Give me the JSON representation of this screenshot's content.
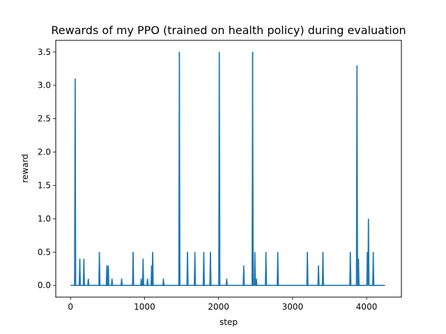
{
  "chart_data": {
    "type": "line",
    "title": "Rewards of my PPO (trained on health policy) during evaluation",
    "xlabel": "step",
    "ylabel": "reward",
    "xlim": [
      -200,
      4470
    ],
    "ylim": [
      -0.175,
      3.675
    ],
    "xticks": [
      0,
      1000,
      2000,
      3000,
      4000
    ],
    "yticks": [
      0.0,
      0.5,
      1.0,
      1.5,
      2.0,
      2.5,
      3.0,
      3.5
    ],
    "x_range": [
      0,
      4250
    ],
    "baseline": 0.0,
    "grid": false,
    "legend": "none",
    "series": [
      {
        "color": "#1f77b4",
        "spikes": [
          {
            "x": 62,
            "y": 3.1
          },
          {
            "x": 125,
            "y": 0.4
          },
          {
            "x": 180,
            "y": 0.4
          },
          {
            "x": 240,
            "y": 0.1
          },
          {
            "x": 390,
            "y": 0.5
          },
          {
            "x": 490,
            "y": 0.3
          },
          {
            "x": 510,
            "y": 0.3
          },
          {
            "x": 560,
            "y": 0.1
          },
          {
            "x": 690,
            "y": 0.1
          },
          {
            "x": 845,
            "y": 0.5
          },
          {
            "x": 955,
            "y": 0.1
          },
          {
            "x": 980,
            "y": 0.4
          },
          {
            "x": 1040,
            "y": 0.1
          },
          {
            "x": 1095,
            "y": 0.3
          },
          {
            "x": 1110,
            "y": 0.5
          },
          {
            "x": 1255,
            "y": 0.1
          },
          {
            "x": 1470,
            "y": 3.5
          },
          {
            "x": 1580,
            "y": 0.5
          },
          {
            "x": 1680,
            "y": 0.5
          },
          {
            "x": 1800,
            "y": 0.5
          },
          {
            "x": 1890,
            "y": 0.5
          },
          {
            "x": 2010,
            "y": 3.5
          },
          {
            "x": 2110,
            "y": 0.1
          },
          {
            "x": 2340,
            "y": 0.3
          },
          {
            "x": 2460,
            "y": 3.5
          },
          {
            "x": 2490,
            "y": 0.5
          },
          {
            "x": 2510,
            "y": 0.1
          },
          {
            "x": 2640,
            "y": 0.5
          },
          {
            "x": 2800,
            "y": 0.5
          },
          {
            "x": 3200,
            "y": 0.5
          },
          {
            "x": 3350,
            "y": 0.3
          },
          {
            "x": 3410,
            "y": 0.5
          },
          {
            "x": 3780,
            "y": 0.5
          },
          {
            "x": 3870,
            "y": 3.3
          },
          {
            "x": 3890,
            "y": 0.4
          },
          {
            "x": 4010,
            "y": 0.5
          },
          {
            "x": 4025,
            "y": 1.0
          },
          {
            "x": 4090,
            "y": 0.5
          }
        ]
      }
    ]
  }
}
